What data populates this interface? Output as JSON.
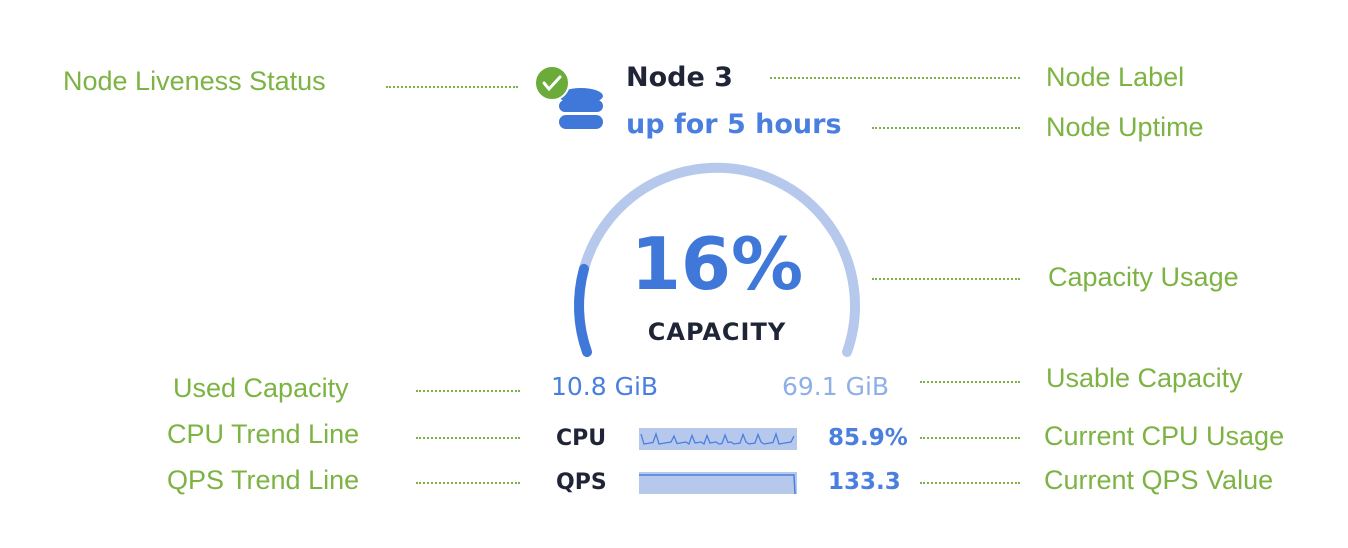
{
  "node": {
    "label": "Node 3",
    "uptime": "up for 5 hours",
    "liveness_icon": "check-circle-icon",
    "node_icon": "database-icon",
    "status_color": "#6aab3a",
    "accent_color": "#4a7fe0"
  },
  "capacity": {
    "percent_text": "16%",
    "percent": 16,
    "label": "CAPACITY",
    "used": "10.8 GiB",
    "usable": "69.1 GiB"
  },
  "metrics": {
    "cpu": {
      "label": "CPU",
      "value": "85.9%"
    },
    "qps": {
      "label": "QPS",
      "value": "133.3"
    }
  },
  "annotations": {
    "liveness": "Node Liveness Status",
    "label": "Node Label",
    "uptime": "Node Uptime",
    "capacity_usage": "Capacity Usage",
    "used_capacity": "Used Capacity",
    "usable_capacity": "Usable Capacity",
    "cpu_trend": "CPU Trend Line",
    "cpu_current": "Current CPU Usage",
    "qps_trend": "QPS Trend Line",
    "qps_current": "Current QPS Value"
  }
}
